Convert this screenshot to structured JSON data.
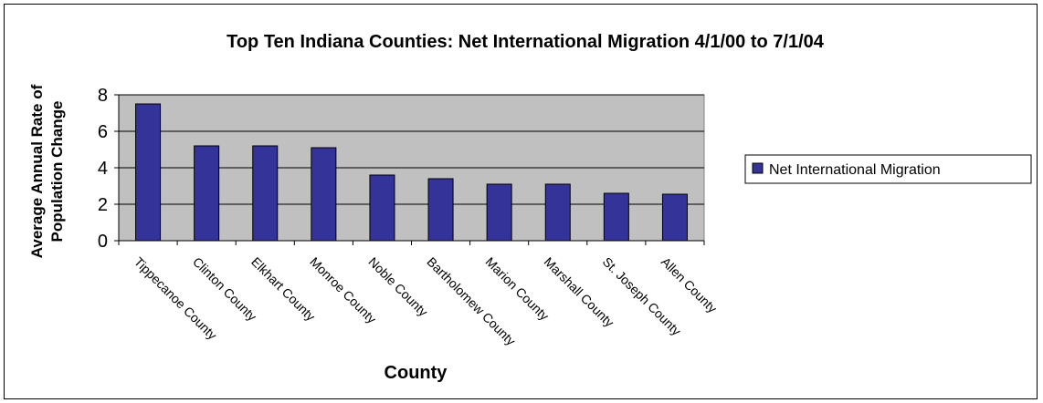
{
  "chart_data": {
    "type": "bar",
    "title": "Top Ten Indiana Counties: Net International Migration 4/1/00 to 7/1/04",
    "xlabel": "County",
    "ylabel_lines": [
      "Average Annual Rate of",
      "Population Change"
    ],
    "ylim": [
      0,
      8
    ],
    "yticks": [
      "0",
      "2",
      "4",
      "6",
      "8"
    ],
    "grid": true,
    "legend_position": "right",
    "categories": [
      "Tippecanoe County",
      "Clinton County",
      "Elkhart County",
      "Monroe County",
      "Noble County",
      "Bartholomew County",
      "Marion County",
      "Marshall County",
      "St. Joseph County",
      "Allen County"
    ],
    "series": [
      {
        "name": "Net International Migration",
        "values": [
          7.5,
          5.2,
          5.2,
          5.1,
          3.6,
          3.4,
          3.1,
          3.1,
          2.6,
          2.55
        ]
      }
    ],
    "colors": {
      "bar": "#333399",
      "plot_background": "#c0c0c0",
      "gridline": "#000000"
    }
  }
}
